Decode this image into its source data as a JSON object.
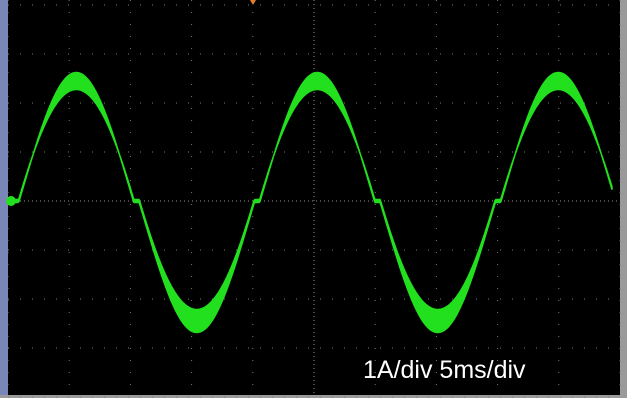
{
  "annotation": "1A/div 5ms/div"
}
